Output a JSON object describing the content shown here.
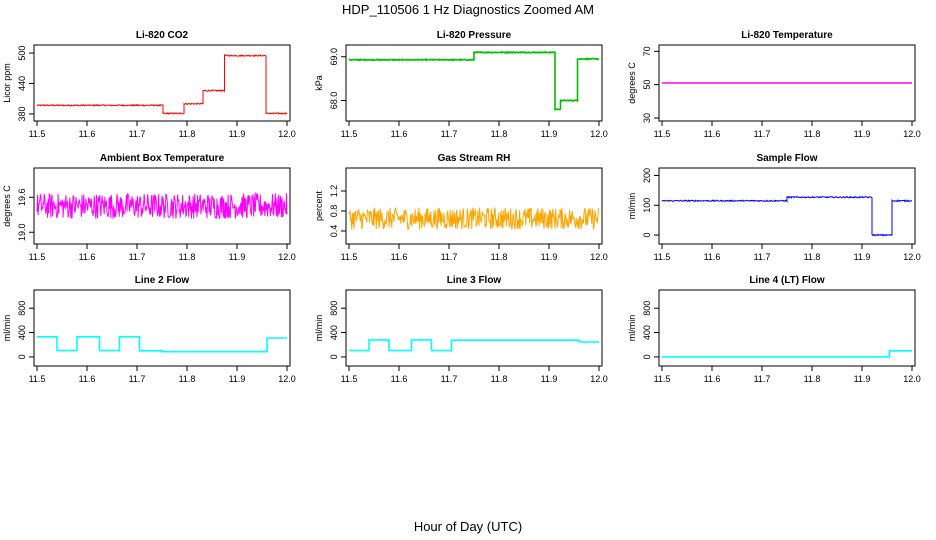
{
  "figure": {
    "title": "HDP_110506  1 Hz Diagnostics Zoomed AM",
    "xlabel": "Hour of Day (UTC)"
  },
  "chart_data": [
    {
      "type": "line",
      "title": "Li-820 CO2",
      "ylabel": "Licor ppm",
      "color": "#ff0000",
      "xlim": [
        11.5,
        12.0
      ],
      "ylim": [
        372,
        510
      ],
      "xticks": [
        "11.5",
        "11.6",
        "11.7",
        "11.8",
        "11.9",
        "12.0"
      ],
      "yticks": [
        "380",
        "440",
        "500"
      ],
      "segments": [
        [
          11.5,
          11.752,
          397
        ],
        [
          11.752,
          11.794,
          381
        ],
        [
          11.794,
          11.832,
          400
        ],
        [
          11.832,
          11.875,
          426
        ],
        [
          11.875,
          11.958,
          495
        ],
        [
          11.958,
          12.0,
          381
        ]
      ],
      "noise": 1.2
    },
    {
      "type": "line",
      "title": "Li-820 Pressure",
      "ylabel": "kPa",
      "color": "#00c000",
      "xlim": [
        11.5,
        12.0
      ],
      "ylim": [
        67.6,
        69.2
      ],
      "xticks": [
        "11.5",
        "11.6",
        "11.7",
        "11.8",
        "11.9",
        "12.0"
      ],
      "yticks": [
        "68.0",
        "69.0"
      ],
      "segments": [
        [
          11.5,
          11.75,
          68.93
        ],
        [
          11.75,
          11.912,
          69.1
        ],
        [
          11.912,
          11.923,
          67.8
        ],
        [
          11.923,
          11.957,
          68.0
        ],
        [
          11.957,
          12.0,
          68.95
        ]
      ],
      "noise": 0.01
    },
    {
      "type": "line",
      "title": "Li-820 Temperature",
      "ylabel": "degrees C",
      "color": "#ff00ff",
      "xlim": [
        11.5,
        12.0
      ],
      "ylim": [
        30,
        72
      ],
      "xticks": [
        "11.5",
        "11.6",
        "11.7",
        "11.8",
        "11.9",
        "12.0"
      ],
      "yticks": [
        "30",
        "50",
        "70"
      ],
      "segments": [
        [
          11.5,
          12.0,
          51
        ]
      ],
      "noise": 0
    },
    {
      "type": "line",
      "title": "Ambient Box Temperature",
      "ylabel": "degrees C",
      "color": "#ff00ff",
      "xlim": [
        11.5,
        12.0
      ],
      "ylim": [
        18.85,
        20.05
      ],
      "xticks": [
        "11.5",
        "11.6",
        "11.7",
        "11.8",
        "11.9",
        "12.0"
      ],
      "yticks": [
        "19.0",
        "19.6"
      ],
      "segments": [
        [
          11.5,
          12.0,
          19.45
        ]
      ],
      "noise": 0.22
    },
    {
      "type": "line",
      "title": "Gas Stream RH",
      "ylabel": "percent",
      "color": "#ffa500",
      "xlim": [
        11.5,
        12.0
      ],
      "ylim": [
        0.2,
        1.6
      ],
      "xticks": [
        "11.5",
        "11.6",
        "11.7",
        "11.8",
        "11.9",
        "12.0"
      ],
      "yticks": [
        "0.4",
        "0.8",
        "1.2"
      ],
      "segments": [
        [
          11.5,
          12.0,
          0.65
        ]
      ],
      "noise": 0.22
    },
    {
      "type": "line",
      "title": "Sample Flow",
      "ylabel": "ml/min",
      "color": "#0000ff",
      "xlim": [
        11.5,
        12.0
      ],
      "ylim": [
        -20,
        215
      ],
      "xticks": [
        "11.5",
        "11.6",
        "11.7",
        "11.8",
        "11.9",
        "12.0"
      ],
      "yticks": [
        "0",
        "100",
        "200"
      ],
      "segments": [
        [
          11.5,
          11.75,
          115
        ],
        [
          11.75,
          11.92,
          127
        ],
        [
          11.92,
          11.96,
          0
        ],
        [
          11.96,
          12.0,
          115
        ]
      ],
      "noise": 2
    },
    {
      "type": "line",
      "title": "Line 2 Flow",
      "ylabel": "ml/min",
      "color": "#00ffff",
      "xlim": [
        11.5,
        12.0
      ],
      "ylim": [
        -100,
        1050
      ],
      "xticks": [
        "11.5",
        "11.6",
        "11.7",
        "11.8",
        "11.9",
        "12.0"
      ],
      "yticks": [
        "0",
        "400",
        "800"
      ],
      "segments": [
        [
          11.5,
          11.54,
          330
        ],
        [
          11.54,
          11.58,
          105
        ],
        [
          11.58,
          11.625,
          330
        ],
        [
          11.625,
          11.665,
          105
        ],
        [
          11.665,
          11.705,
          330
        ],
        [
          11.705,
          11.75,
          100
        ],
        [
          11.75,
          11.96,
          85
        ],
        [
          11.96,
          12.0,
          310
        ]
      ],
      "noise": 0
    },
    {
      "type": "line",
      "title": "Line 3 Flow",
      "ylabel": "ml/min",
      "color": "#00ffff",
      "xlim": [
        11.5,
        12.0
      ],
      "ylim": [
        -100,
        1050
      ],
      "xticks": [
        "11.5",
        "11.6",
        "11.7",
        "11.8",
        "11.9",
        "12.0"
      ],
      "yticks": [
        "0",
        "400",
        "800"
      ],
      "segments": [
        [
          11.5,
          11.54,
          105
        ],
        [
          11.54,
          11.58,
          280
        ],
        [
          11.58,
          11.625,
          105
        ],
        [
          11.625,
          11.665,
          280
        ],
        [
          11.665,
          11.705,
          105
        ],
        [
          11.705,
          11.96,
          275
        ],
        [
          11.96,
          12.0,
          245
        ]
      ],
      "noise": 0
    },
    {
      "type": "line",
      "title": "Line 4 (LT) Flow",
      "ylabel": "ml/min",
      "color": "#00ffff",
      "xlim": [
        11.5,
        12.0
      ],
      "ylim": [
        -100,
        1050
      ],
      "xticks": [
        "11.5",
        "11.6",
        "11.7",
        "11.8",
        "11.9",
        "12.0"
      ],
      "yticks": [
        "0",
        "400",
        "800"
      ],
      "segments": [
        [
          11.5,
          11.955,
          0
        ],
        [
          11.955,
          12.0,
          100
        ]
      ],
      "noise": 0
    }
  ]
}
